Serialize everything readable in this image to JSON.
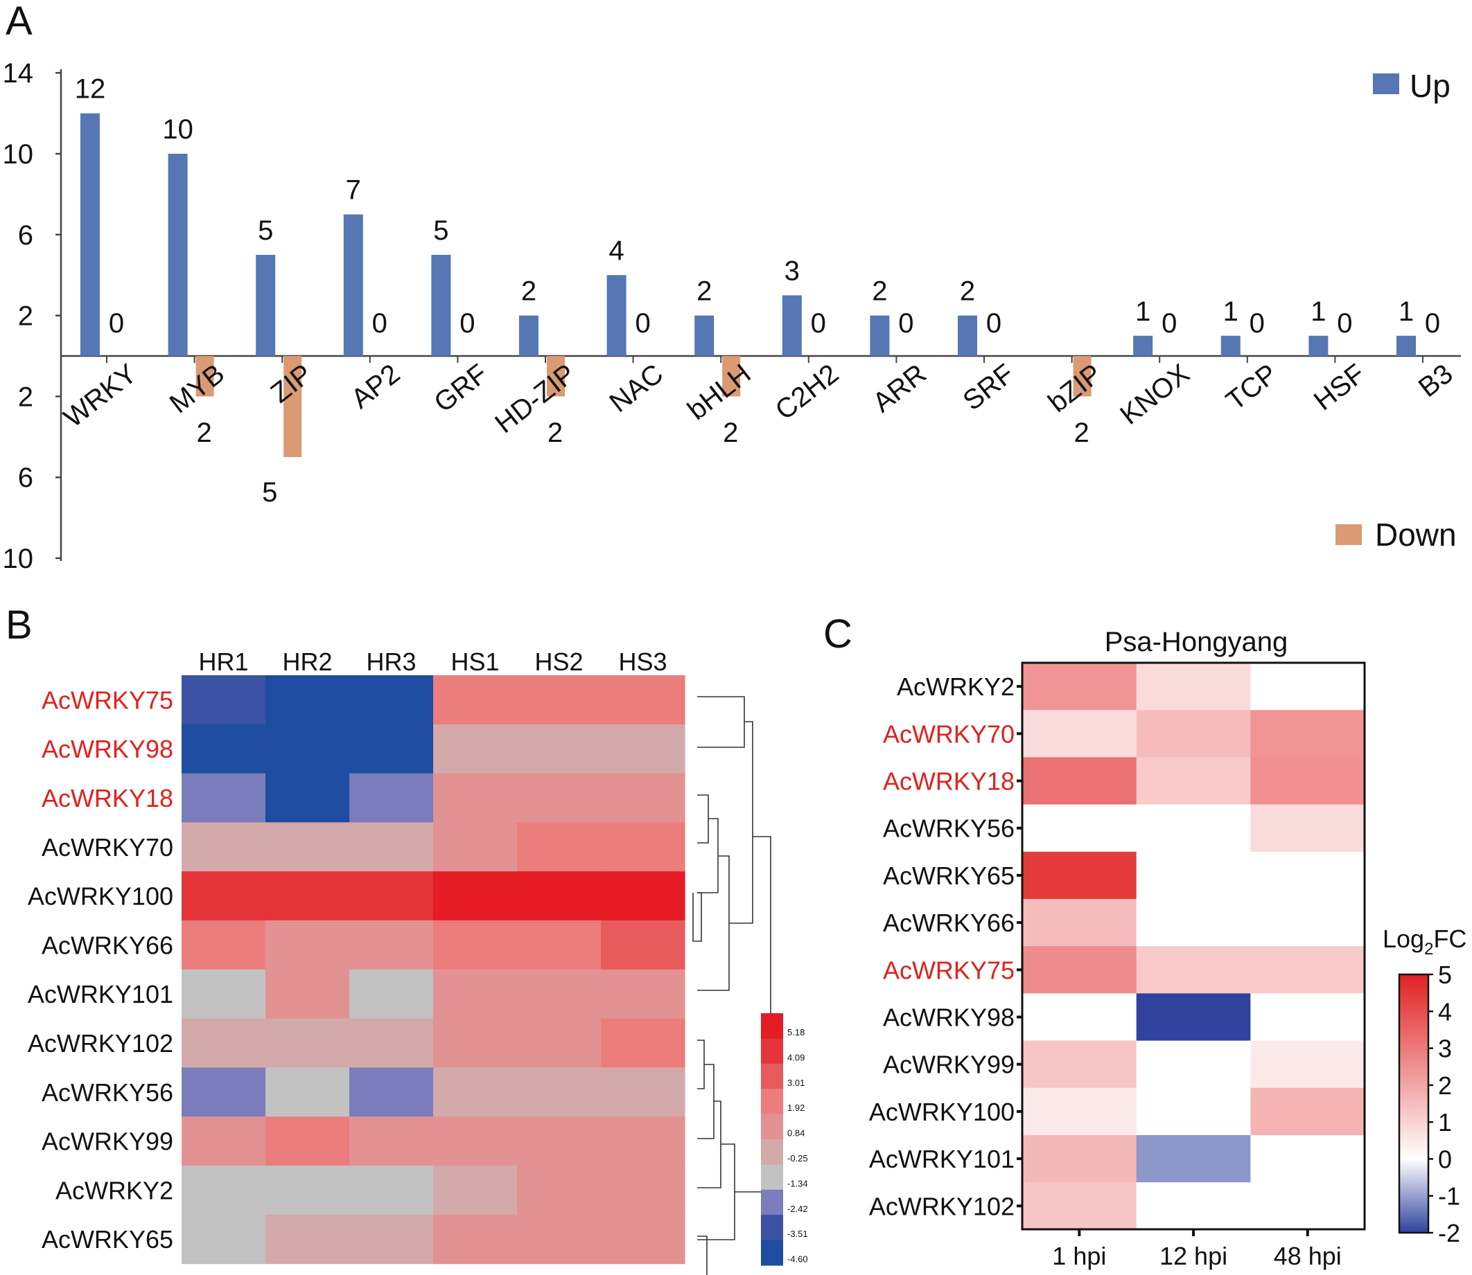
{
  "panel_labels": {
    "a": "A",
    "b": "B",
    "c": "C"
  },
  "chart_data": [
    {
      "id": "A",
      "type": "bar",
      "title": "",
      "categories": [
        "WRKY",
        "MYB",
        "ZIP",
        "AP2",
        "GRF",
        "HD-ZIP",
        "NAC",
        "bHLH",
        "C2H2",
        "ARR",
        "SRF",
        "bZIP",
        "KNOX",
        "TCP",
        "HSF",
        "B3"
      ],
      "series": [
        {
          "name": "Up",
          "color": "#5676b4",
          "values": [
            12,
            10,
            5,
            7,
            5,
            2,
            4,
            2,
            3,
            2,
            2,
            0,
            1,
            1,
            1,
            1
          ]
        },
        {
          "name": "Down",
          "color": "#d99a74",
          "values": [
            0,
            2,
            5,
            0,
            0,
            2,
            0,
            2,
            0,
            0,
            0,
            2,
            0,
            0,
            0,
            0
          ]
        }
      ],
      "ytick_labels_up": [
        "14",
        "10",
        "6",
        "2"
      ],
      "ytick_labels_down": [
        "2",
        "6",
        "10"
      ],
      "ytick_values_up": [
        14,
        10,
        6,
        2
      ],
      "ytick_values_down": [
        2,
        6,
        10
      ],
      "ylim": [
        -10,
        14
      ],
      "legend": "right"
    },
    {
      "id": "B",
      "type": "heatmap",
      "columns": [
        "HR1",
        "HR2",
        "HR3",
        "HS1",
        "HS2",
        "HS3"
      ],
      "rows": [
        {
          "name": "AcWRKY75",
          "highlight": true
        },
        {
          "name": "AcWRKY98",
          "highlight": true
        },
        {
          "name": "AcWRKY18",
          "highlight": true
        },
        {
          "name": "AcWRKY70",
          "highlight": false
        },
        {
          "name": "AcWRKY100",
          "highlight": false
        },
        {
          "name": "AcWRKY66",
          "highlight": false
        },
        {
          "name": "AcWRKY101",
          "highlight": false
        },
        {
          "name": "AcWRKY102",
          "highlight": false
        },
        {
          "name": "AcWRKY56",
          "highlight": false
        },
        {
          "name": "AcWRKY99",
          "highlight": false
        },
        {
          "name": "AcWRKY2",
          "highlight": false
        },
        {
          "name": "AcWRKY65",
          "highlight": false
        }
      ],
      "values": [
        [
          -3.51,
          -4.6,
          -4.6,
          1.92,
          1.92,
          1.92
        ],
        [
          -4.6,
          -4.6,
          -4.6,
          -0.25,
          -0.25,
          -0.25
        ],
        [
          -2.42,
          -4.6,
          -2.42,
          0.84,
          0.84,
          0.84
        ],
        [
          -0.25,
          -0.25,
          -0.25,
          0.84,
          1.92,
          1.92
        ],
        [
          4.09,
          4.09,
          4.09,
          5.18,
          5.18,
          5.18
        ],
        [
          1.92,
          0.84,
          0.84,
          1.92,
          1.92,
          3.01
        ],
        [
          -1.34,
          0.84,
          -1.34,
          0.84,
          0.84,
          0.84
        ],
        [
          -0.25,
          -0.25,
          -0.25,
          0.84,
          0.84,
          1.92
        ],
        [
          -2.42,
          -1.34,
          -2.42,
          -0.25,
          -0.25,
          -0.25
        ],
        [
          0.84,
          1.92,
          0.84,
          0.84,
          0.84,
          0.84
        ],
        [
          -1.34,
          -1.34,
          -1.34,
          -0.25,
          0.84,
          0.84
        ],
        [
          -1.34,
          -0.25,
          -0.25,
          0.84,
          0.84,
          0.84
        ]
      ],
      "colorbar_labels": [
        "5.18",
        "4.09",
        "3.01",
        "1.92",
        "0.84",
        "-0.25",
        "-1.34",
        "-2.42",
        "-3.51",
        "-4.60"
      ],
      "colorbar_colors": [
        "#e51c24",
        "#e4343a",
        "#e85b5d",
        "#ec7d7d",
        "#e29292",
        "#d4a9a9",
        "#c2c2c2",
        "#7a7cbc",
        "#3c52a4",
        "#1e4ca0"
      ],
      "highlight_color": "#e0211d"
    },
    {
      "id": "C",
      "type": "heatmap",
      "title": "Psa-Hongyang",
      "columns": [
        "1 hpi",
        "12 hpi",
        "48 hpi"
      ],
      "rows": [
        {
          "name": "AcWRKY2",
          "highlight": false
        },
        {
          "name": "AcWRKY70",
          "highlight": true
        },
        {
          "name": "AcWRKY18",
          "highlight": true
        },
        {
          "name": "AcWRKY56",
          "highlight": false
        },
        {
          "name": "AcWRKY65",
          "highlight": false
        },
        {
          "name": "AcWRKY66",
          "highlight": false
        },
        {
          "name": "AcWRKY75",
          "highlight": true
        },
        {
          "name": "AcWRKY98",
          "highlight": false
        },
        {
          "name": "AcWRKY99",
          "highlight": false
        },
        {
          "name": "AcWRKY100",
          "highlight": false
        },
        {
          "name": "AcWRKY101",
          "highlight": false
        },
        {
          "name": "AcWRKY102",
          "highlight": false
        }
      ],
      "values": [
        [
          2.4,
          0.8,
          0.0
        ],
        [
          0.8,
          1.5,
          2.4
        ],
        [
          3.2,
          1.2,
          2.5
        ],
        [
          0.0,
          0.0,
          0.8
        ],
        [
          4.4,
          0.0,
          0.0
        ],
        [
          1.5,
          0.0,
          0.0
        ],
        [
          2.6,
          1.2,
          1.2
        ],
        [
          0.0,
          -2.0,
          0.0
        ],
        [
          1.3,
          0.0,
          0.5
        ],
        [
          0.5,
          0.0,
          1.7
        ],
        [
          1.6,
          -1.1,
          0.0
        ],
        [
          1.3,
          0.0,
          0.0
        ]
      ],
      "colorbar_title": "Log",
      "colorbar_sub": "2",
      "colorbar_title_end": "FC",
      "colorbar_ticks": [
        "5",
        "4",
        "3",
        "2",
        "1",
        "0",
        "-1",
        "-2"
      ],
      "colorbar_tick_values": [
        5,
        4,
        3,
        2,
        1,
        0,
        -1,
        -2
      ],
      "vmin": -2,
      "vmax": 5,
      "highlight_color": "#e0211d"
    }
  ]
}
